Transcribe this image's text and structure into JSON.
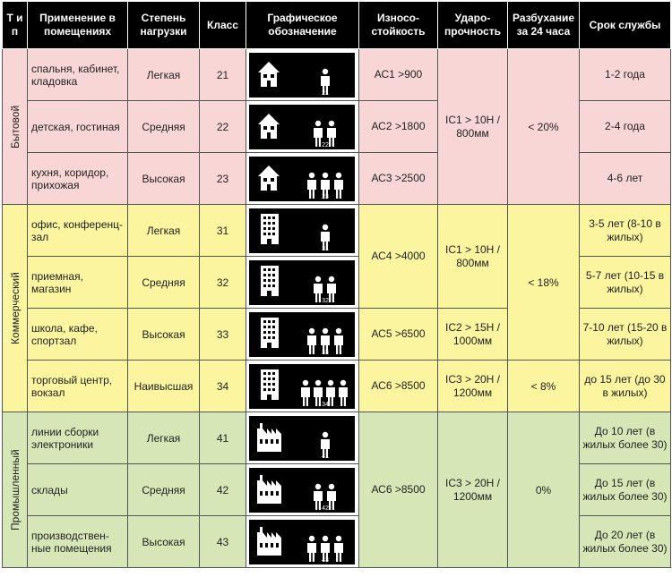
{
  "headers": {
    "type": "Т и п",
    "usage": "Применение в помещениях",
    "load": "Степень нагрузки",
    "class": "Класс",
    "symbol": "Графическое обозначение",
    "wear": "Износо-стойкость",
    "impact": "Ударо-прочность",
    "swelling": "Разбухание за 24 часа",
    "life": "Срок службы"
  },
  "groups": [
    {
      "type": "Бытовой",
      "rows": [
        {
          "usage": "спальня, кабинет, кладовка",
          "load": "Легкая",
          "class": "21",
          "icon": "house-one-person-icon",
          "wear": "АС1 >900",
          "life": "1-2 года"
        },
        {
          "usage": "детская, гостиная",
          "load": "Средняя",
          "class": "22",
          "icon": "house-two-people-icon",
          "wear": "АС2 >1800",
          "life": "2-4 года"
        },
        {
          "usage": "кухня, коридор, прихожая",
          "load": "Высокая",
          "class": "23",
          "icon": "house-three-people-icon",
          "wear": "АС3 >2500",
          "life": "4-6 лет"
        }
      ],
      "impact": "IC1 > 10H / 800мм",
      "swelling": "< 20%"
    },
    {
      "type": "Коммерческий",
      "rows": [
        {
          "usage": "офис, конференц-зал",
          "load": "Легкая",
          "class": "31",
          "icon": "building-one-person-icon",
          "life": "3-5 лет (8-10 в жилых)"
        },
        {
          "usage": "приемная, магазин",
          "load": "Средняя",
          "class": "32",
          "icon": "building-two-people-icon",
          "life": "5-7 лет (10-15 в жилых)"
        },
        {
          "usage": "школа, кафе, спортзал",
          "load": "Высокая",
          "class": "33",
          "icon": "building-three-people-icon",
          "wear": "АС5 >6500",
          "life": "7-10 лет (15-20 в жилых)"
        },
        {
          "usage": "торговый центр, вокзал",
          "load": "Наивысшая",
          "class": "34",
          "icon": "building-four-people-icon",
          "wear": "АС6 >8500",
          "life": "до 15 лет (до 30 в жилых)"
        }
      ],
      "wear_merged": "АС4 >4000",
      "impact_top": "IC1 > 10H / 800мм",
      "impact_mid": "IC2 > 15H / 1000мм",
      "impact_bottom": "IC3 > 20H / 1200мм",
      "swelling_top": "< 18%",
      "swelling_bottom": "< 8%"
    },
    {
      "type": "Промышленный",
      "rows": [
        {
          "usage": "линии сборки электроники",
          "load": "Легкая",
          "class": "41",
          "icon": "factory-one-person-icon",
          "life": "До 10 лет (в жилых более 30)"
        },
        {
          "usage": "склады",
          "load": "Средняя",
          "class": "42",
          "icon": "factory-two-people-icon",
          "life": "До 15 лет (в жилых более 30)"
        },
        {
          "usage": "производствен-ные помещения",
          "load": "Высокая",
          "class": "43",
          "icon": "factory-three-people-icon",
          "life": "До 20 лет (в жилых более 30)"
        }
      ],
      "wear": "АС6 >8500",
      "impact": "IC3 > 20H / 1200мм",
      "swelling": "0%"
    }
  ]
}
